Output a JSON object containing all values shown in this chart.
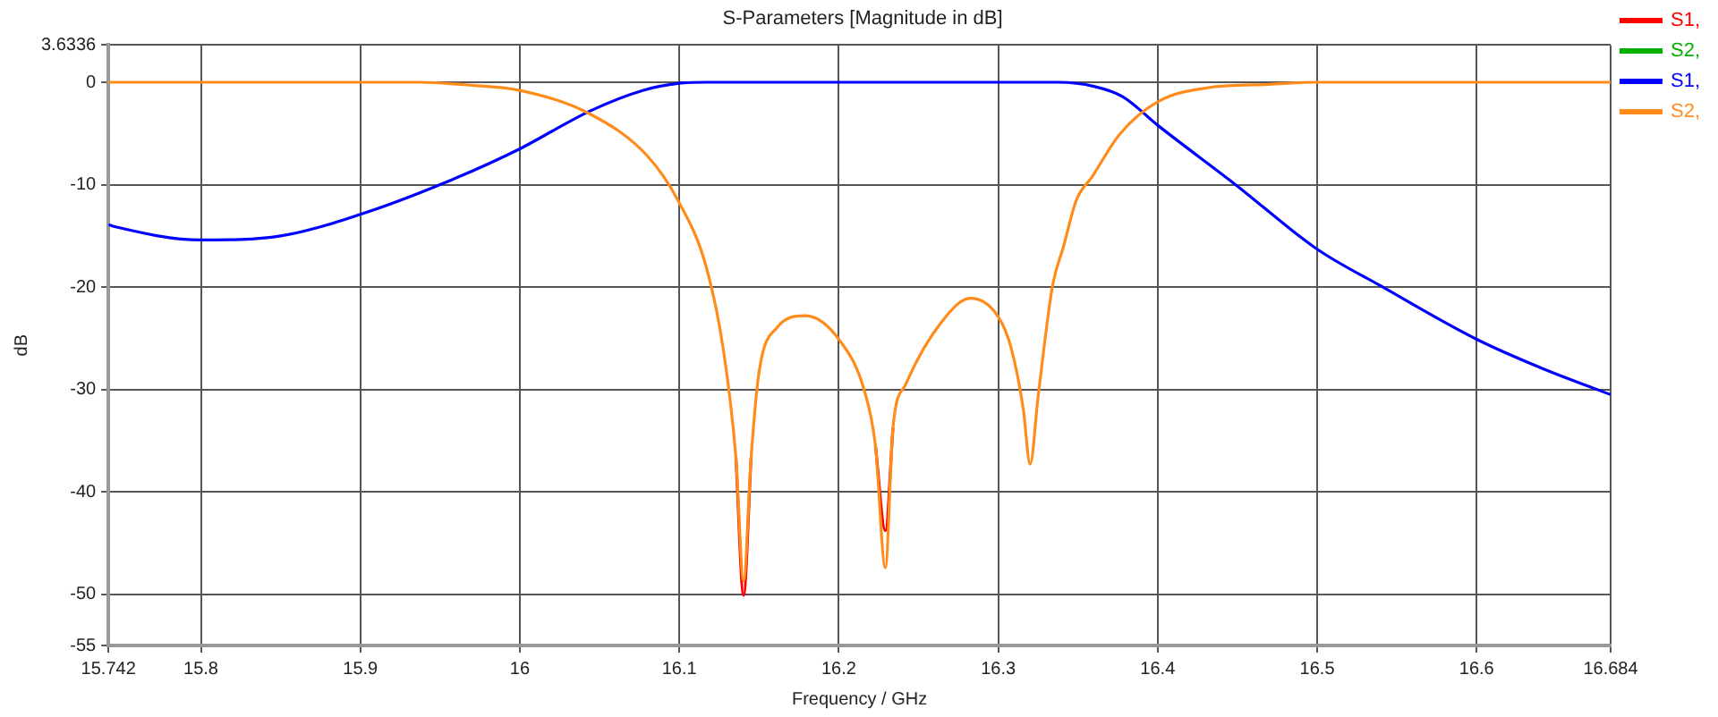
{
  "chart_data": {
    "type": "line",
    "title": "S-Parameters [Magnitude in dB]",
    "xlabel": "Frequency / GHz",
    "ylabel": "dB",
    "xlim": [
      15.742,
      16.684
    ],
    "xticks": [
      15.742,
      15.8,
      15.9,
      16,
      16.1,
      16.2,
      16.3,
      16.4,
      16.5,
      16.6,
      16.684
    ],
    "ylim": [
      -55,
      3.6336
    ],
    "yticks": [
      3.6336,
      0,
      -10,
      -20,
      -30,
      -40,
      -50,
      -55
    ],
    "grid": true,
    "legend": "top right",
    "marker": "none",
    "line_style": "solid",
    "series": [
      {
        "name": "S1,",
        "color": "#ff0000",
        "x": [
          16.1355,
          16.1403,
          16.145,
          16.18,
          16.223,
          16.2292,
          16.234
        ],
        "values": [
          -36.7,
          -50.1,
          -36.7,
          null,
          -35.5,
          -43.8,
          -33.7
        ]
      },
      {
        "name": "S2,",
        "color": "#00b000"
      },
      {
        "name": "S1,",
        "color": "#0000ff",
        "x": [
          15.742,
          15.746,
          15.8,
          15.85,
          15.9,
          15.95,
          16.0,
          16.02,
          16.044,
          16.077,
          16.1,
          16.117,
          16.338,
          16.36,
          16.378,
          16.4,
          16.448,
          16.5,
          16.54,
          16.6,
          16.642,
          16.684
        ],
        "values": [
          -13.9,
          -14.1,
          -15.4,
          -15.0,
          -12.9,
          -10.0,
          -6.5,
          -4.8,
          -2.8,
          -0.8,
          -0.1,
          0,
          0,
          -0.4,
          -1.4,
          -4.2,
          -9.9,
          -16.3,
          -19.9,
          -25.1,
          -28.0,
          -30.5
        ]
      },
      {
        "name": "S2,",
        "color": "#ff8c1a",
        "x": [
          15.742,
          15.8,
          15.9,
          15.937,
          15.97,
          16.0,
          16.044,
          16.08,
          16.099,
          16.117,
          16.128,
          16.1355,
          16.1403,
          16.145,
          16.15,
          16.161,
          16.179,
          16.201,
          16.216,
          16.223,
          16.2292,
          16.234,
          16.242,
          16.264,
          16.2826,
          16.3,
          16.308,
          16.3157,
          16.32,
          16.325,
          16.334,
          16.341,
          16.349,
          16.359,
          16.376,
          16.4,
          16.433,
          16.47,
          16.5,
          16.6,
          16.684
        ],
        "values": [
          0,
          0,
          0,
          0,
          -0.3,
          -0.8,
          -3.1,
          -7.2,
          -11.5,
          -18.1,
          -26.5,
          -36.7,
          -48.7,
          -36.7,
          -28.3,
          -24.0,
          -22.8,
          -25.3,
          -30.1,
          -35.5,
          -47.4,
          -33.7,
          -29.5,
          -23.5,
          -21.1,
          -22.9,
          -25.9,
          -31.9,
          -37.3,
          -30.7,
          -19.9,
          -16.0,
          -11.5,
          -9.2,
          -5.1,
          -1.9,
          -0.5,
          -0.2,
          0,
          0,
          0
        ]
      }
    ]
  }
}
